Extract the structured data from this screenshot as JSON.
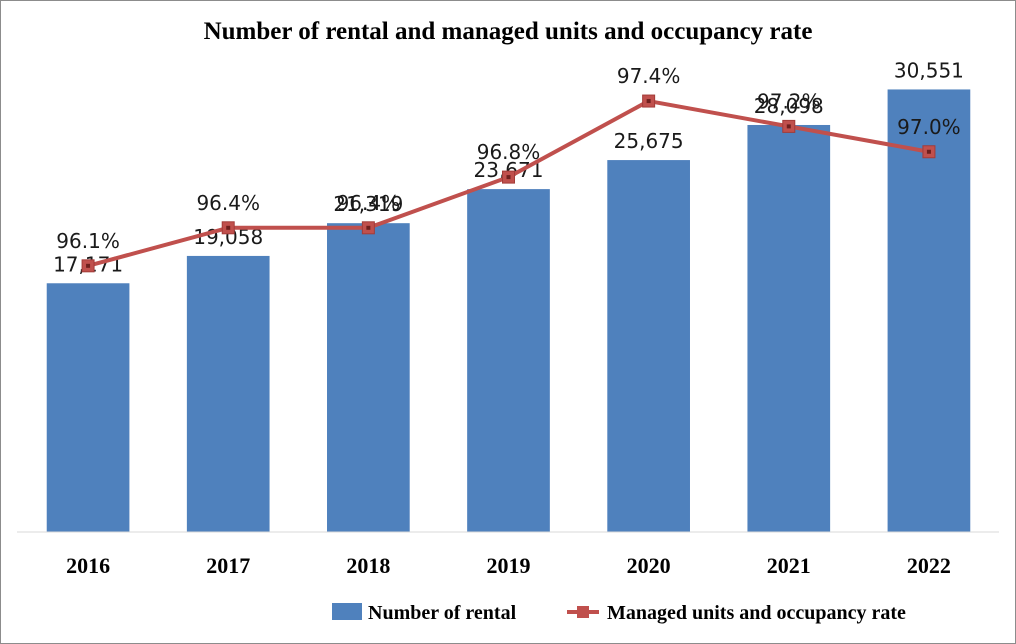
{
  "chart_data": {
    "type": "bar",
    "title": "Number of rental and managed units and occupancy rate",
    "categories": [
      "2016",
      "2017",
      "2018",
      "2019",
      "2020",
      "2021",
      "2022"
    ],
    "series": [
      {
        "name": "Number of rental",
        "type": "bar",
        "values": [
          17171,
          19058,
          21319,
          23671,
          25675,
          28098,
          30551
        ],
        "labels": [
          "17,171",
          "19,058",
          "21,319",
          "23,671",
          "25,675",
          "28,098",
          "30,551"
        ],
        "color": "#4f81bd"
      },
      {
        "name": "Managed units and occupancy rate",
        "type": "line",
        "values": [
          96.1,
          96.4,
          96.4,
          96.8,
          97.4,
          97.2,
          97.0
        ],
        "labels": [
          "96.1%",
          "96.4%",
          "96.4%",
          "96.8%",
          "97.4%",
          "97.2%",
          "97.0%"
        ],
        "color": "#c0504d"
      }
    ],
    "bar_axis_range": [
      0,
      35000
    ],
    "line_axis_range": [
      94.0,
      98.0
    ],
    "grid": false,
    "legend_position": "bottom-right"
  }
}
